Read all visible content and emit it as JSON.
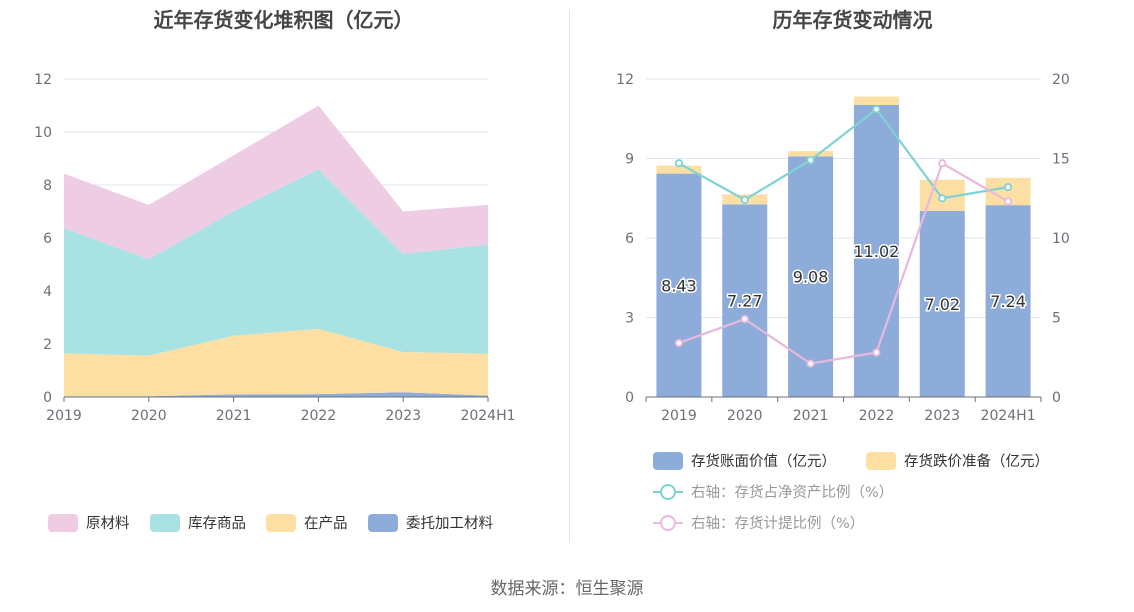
{
  "chart_data": [
    {
      "type": "area",
      "stacked": true,
      "title": "近年存货变化堆积图（亿元）",
      "categories": [
        "2019",
        "2020",
        "2021",
        "2022",
        "2023",
        "2024H1"
      ],
      "yticks": [
        "0",
        "2",
        "4",
        "6",
        "8",
        "10",
        "12"
      ],
      "ylim": [
        0,
        12
      ],
      "grid": true,
      "legend_position": "bottom",
      "series": [
        {
          "name": "委托加工材料",
          "color": "#8eacd9",
          "values": [
            0.03,
            0.03,
            0.1,
            0.11,
            0.18,
            0.05
          ]
        },
        {
          "name": "在产品",
          "color": "#fddfa4",
          "values": [
            1.62,
            1.53,
            2.21,
            2.46,
            1.52,
            1.58
          ]
        },
        {
          "name": "库存商品",
          "color": "#a8e2e3",
          "values": [
            4.72,
            3.64,
            4.7,
            6.03,
            3.7,
            4.12
          ]
        },
        {
          "name": "原材料",
          "color": "#eecde4",
          "values": [
            2.06,
            2.05,
            2.11,
            2.4,
            1.6,
            1.5
          ]
        }
      ],
      "legend_order": [
        "原材料",
        "库存商品",
        "在产品",
        "委托加工材料"
      ]
    },
    {
      "type": "bar",
      "stacked": true,
      "title": "历年存货变动情况",
      "categories": [
        "2019",
        "2020",
        "2021",
        "2022",
        "2023",
        "2024H1"
      ],
      "yticks_left": [
        "0",
        "3",
        "6",
        "9",
        "12"
      ],
      "yticks_right": [
        "0",
        "5",
        "10",
        "15",
        "20"
      ],
      "ylim_left": [
        0,
        12
      ],
      "ylim_right": [
        0,
        20
      ],
      "grid": true,
      "legend_position": "bottom",
      "bar_series": [
        {
          "name": "存货账面价值（亿元）",
          "color": "#8eacd9",
          "values": [
            8.43,
            7.27,
            9.08,
            11.02,
            7.02,
            7.24
          ],
          "labels": [
            "8.43",
            "7.27",
            "9.08",
            "11.02",
            "7.02",
            "7.24"
          ]
        },
        {
          "name": "存货跌价准备（亿元）",
          "color": "#fddfa4",
          "values": [
            0.3,
            0.38,
            0.2,
            0.32,
            1.18,
            1.03
          ]
        }
      ],
      "line_series": [
        {
          "name": "右轴：存货占净资产比例（%）",
          "color": "#7fd3d5",
          "axis": "right",
          "values": [
            14.7,
            12.4,
            14.9,
            18.1,
            12.5,
            13.2
          ]
        },
        {
          "name": "右轴：存货计提比例（%）",
          "color": "#e6b9dd",
          "axis": "right",
          "values": [
            3.4,
            4.9,
            2.1,
            2.8,
            14.7,
            12.3
          ]
        }
      ]
    }
  ],
  "footer": {
    "source": "数据来源：恒生聚源"
  }
}
